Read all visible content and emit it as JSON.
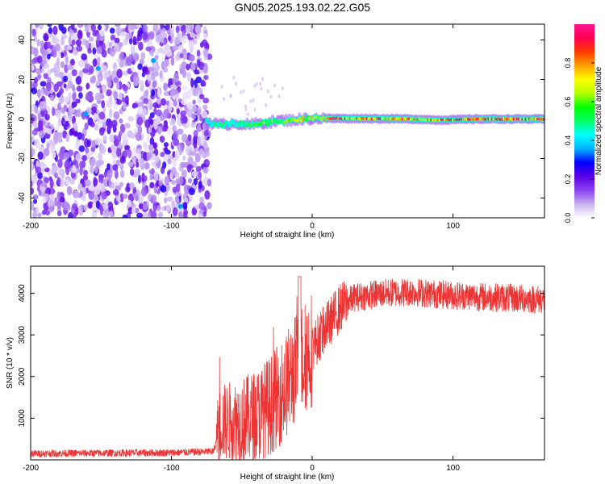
{
  "figure_title": "GN05.2025.193.02.22.G05",
  "chart_data": [
    {
      "type": "heatmap",
      "title": "",
      "xlabel": "Height of straight line (km)",
      "ylabel": "Frequency (Hz)",
      "xlim": [
        -200,
        165
      ],
      "ylim": [
        -50,
        48
      ],
      "x_ticks": [
        -200,
        -100,
        0,
        100
      ],
      "y_ticks": [
        -40,
        -20,
        0,
        20,
        40
      ],
      "colorbar": {
        "label": "Normalized spectral amplitude",
        "range": [
          0,
          1
        ],
        "ticks": [
          0.0,
          0.2,
          0.4,
          0.6,
          0.8
        ],
        "colors": [
          "#ffffff",
          "#c8b0f0",
          "#8a40f0",
          "#5a00e6",
          "#0000ff",
          "#00b4ff",
          "#00ffff",
          "#00ff64",
          "#00ff00",
          "#b4ff00",
          "#ffff00",
          "#ffa000",
          "#ff3c00",
          "#ff0050",
          "#ff1493"
        ]
      },
      "ridge": [
        {
          "x": -75,
          "freq": -1.5,
          "amp": 0.45
        },
        {
          "x": -65,
          "freq": -3,
          "amp": 0.5
        },
        {
          "x": -55,
          "freq": -2,
          "amp": 0.5
        },
        {
          "x": -45,
          "freq": -3,
          "amp": 0.55
        },
        {
          "x": -35,
          "freq": -2,
          "amp": 0.6
        },
        {
          "x": -25,
          "freq": -1,
          "amp": 0.65
        },
        {
          "x": -15,
          "freq": -0.5,
          "amp": 0.7
        },
        {
          "x": -5,
          "freq": 0,
          "amp": 0.75
        },
        {
          "x": 5,
          "freq": 0.3,
          "amp": 0.8
        },
        {
          "x": 15,
          "freq": 0.3,
          "amp": 0.9
        },
        {
          "x": 40,
          "freq": 0.2,
          "amp": 0.9
        },
        {
          "x": 70,
          "freq": 0,
          "amp": 0.8
        },
        {
          "x": 90,
          "freq": -0.5,
          "amp": 0.85
        },
        {
          "x": 120,
          "freq": 0,
          "amp": 0.9
        },
        {
          "x": 165,
          "freq": 0,
          "amp": 0.9
        }
      ],
      "noise_region_x": [
        -200,
        -73
      ]
    },
    {
      "type": "line",
      "title": "",
      "xlabel": "Height of straight line (km)",
      "ylabel": "SNR (10 * v/v)",
      "xlim": [
        -200,
        165
      ],
      "ylim": [
        0,
        4650
      ],
      "x_ticks": [
        -200,
        -100,
        0,
        100
      ],
      "y_ticks": [
        1000,
        2000,
        3000,
        4000
      ],
      "line_color": "#ee3333",
      "series_trend": [
        {
          "x": -200,
          "y": 150
        },
        {
          "x": -100,
          "y": 170
        },
        {
          "x": -70,
          "y": 200
        },
        {
          "x": -65,
          "y": 900
        },
        {
          "x": -50,
          "y": 950
        },
        {
          "x": -40,
          "y": 1050
        },
        {
          "x": -30,
          "y": 1300
        },
        {
          "x": -20,
          "y": 1700
        },
        {
          "x": -10,
          "y": 2300
        },
        {
          "x": 0,
          "y": 2700
        },
        {
          "x": 10,
          "y": 3200
        },
        {
          "x": 20,
          "y": 3650
        },
        {
          "x": 30,
          "y": 3900
        },
        {
          "x": 50,
          "y": 4000
        },
        {
          "x": 70,
          "y": 4030
        },
        {
          "x": 100,
          "y": 3950
        },
        {
          "x": 130,
          "y": 3900
        },
        {
          "x": 165,
          "y": 3850
        }
      ]
    }
  ]
}
